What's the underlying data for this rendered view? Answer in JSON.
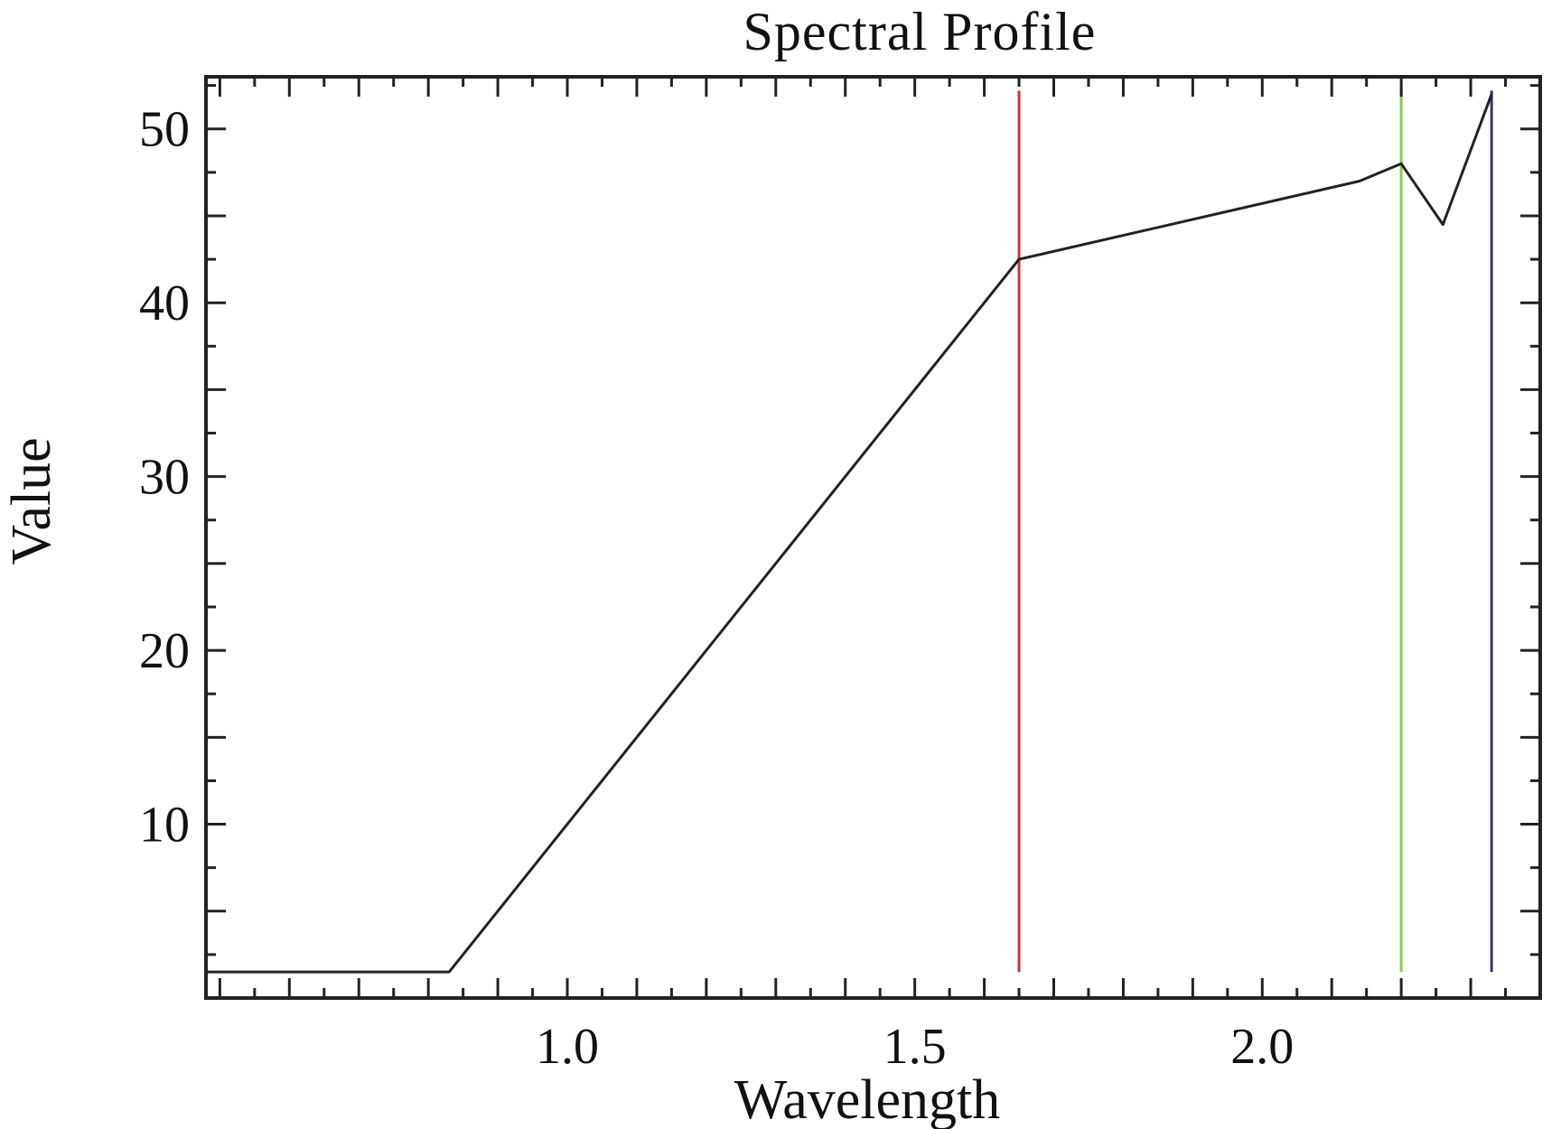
{
  "chart_data": {
    "type": "line",
    "title": "Spectral Profile",
    "xlabel": "Wavelength",
    "ylabel": "Value",
    "xlim": [
      0.48,
      2.4
    ],
    "ylim": [
      0,
      53
    ],
    "x_ticks": [
      1.0,
      1.5,
      2.0
    ],
    "x_tick_labels": [
      "1.0",
      "1.5",
      "2.0"
    ],
    "y_ticks": [
      10,
      20,
      30,
      40,
      50
    ],
    "y_tick_labels": [
      "10",
      "20",
      "30",
      "40",
      "50"
    ],
    "grid": false,
    "series": [
      {
        "color": "#222222",
        "x": [
          0.48,
          0.83,
          1.65,
          2.14,
          2.2,
          2.26,
          2.33
        ],
        "y": [
          1.5,
          1.5,
          42.5,
          47.0,
          48.0,
          44.5,
          52.0
        ]
      }
    ],
    "band_markers": [
      {
        "x": 1.65,
        "y_range": [
          1.5,
          52.2
        ],
        "color": "#cc3344"
      },
      {
        "x": 2.2,
        "y_range": [
          1.5,
          52.2
        ],
        "color": "#88cc55"
      },
      {
        "x": 2.33,
        "y_range": [
          1.5,
          52.2
        ],
        "color": "#333377"
      }
    ]
  }
}
